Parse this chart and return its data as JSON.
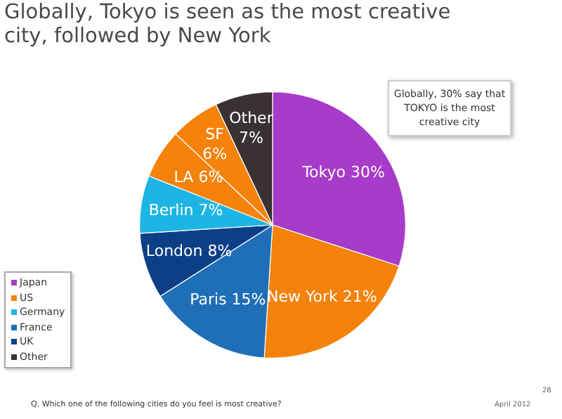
{
  "chart_data": {
    "type": "pie",
    "title": "Globally, Tokyo is seen as the most creative city, followed by New York",
    "categories": [
      "Tokyo",
      "New York",
      "Paris",
      "London",
      "Berlin",
      "LA",
      "SF",
      "Other"
    ],
    "values": [
      30,
      21,
      15,
      8,
      7,
      6,
      6,
      7
    ],
    "colors": [
      "#a83bc9",
      "#f5820a",
      "#1f6fb8",
      "#0d3f86",
      "#1db6e4",
      "#f5820a",
      "#f5820a",
      "#3a3133"
    ],
    "value_labels": [
      "30%",
      "21%",
      "15%",
      "8%",
      "7%",
      "6%",
      "6%",
      "7%"
    ],
    "annotations": [
      "Globally, 30% say that TOKYO is the most creative city",
      "Japan",
      "US",
      "Germany",
      "France",
      "UK",
      "Other",
      "Q. Which one of the following cities do you feel is most creative?",
      "28",
      "April 2012"
    ]
  }
}
